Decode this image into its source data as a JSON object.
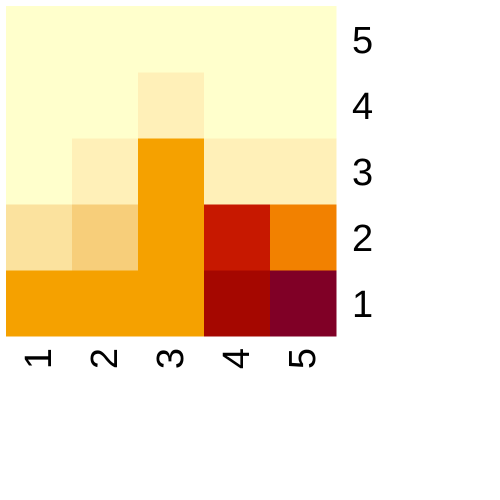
{
  "chart_data": {
    "type": "heatmap",
    "x_categories": [
      "1",
      "2",
      "3",
      "4",
      "5"
    ],
    "y_categories": [
      "1",
      "2",
      "3",
      "4",
      "5"
    ],
    "values": [
      [
        4,
        4,
        4,
        9,
        10
      ],
      [
        2,
        3,
        4,
        8,
        5
      ],
      [
        0,
        1,
        4,
        1,
        1
      ],
      [
        0,
        0,
        1,
        0,
        0
      ],
      [
        0,
        0,
        0,
        0,
        0
      ]
    ],
    "value_range": [
      0,
      10
    ],
    "palette": [
      "#ffffcc",
      "#fff0b8",
      "#fbe29e",
      "#f7ce7a",
      "#f5a100",
      "#f28100",
      "#e33e00",
      "#c71800",
      "#a50700",
      "#800026"
    ],
    "title": "",
    "xlabel": "",
    "ylabel": ""
  }
}
